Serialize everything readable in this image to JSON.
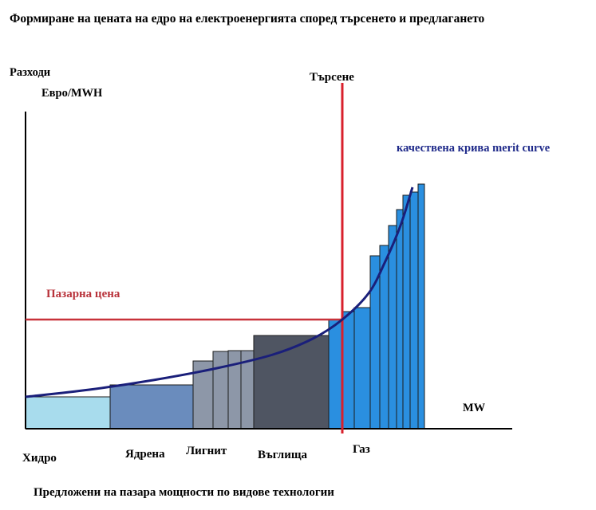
{
  "chart_data": {
    "type": "bar",
    "title": "Формиране на цената на едро на електроенергията според търсенето и предлагането",
    "ylabel": "Разходи",
    "yunit": "Евро/MWH",
    "xlabel": "MW",
    "footer": "Предложени на пазара мощности по видове технологии",
    "demand_label": "Търсене",
    "price_label": "Пазарна цена",
    "curve_label": "качествена крива merit curve",
    "groups": [
      {
        "name": "Хидро",
        "color": "#a8dced",
        "blocks": [
          {
            "from": 0,
            "to": 106,
            "cost": 40
          }
        ]
      },
      {
        "name": "Ядрена",
        "color": "#6a8cbd",
        "blocks": [
          {
            "from": 106,
            "to": 210,
            "cost": 55
          }
        ]
      },
      {
        "name": "Лигнит",
        "color": "#8d97a8",
        "blocks": [
          {
            "from": 210,
            "to": 235,
            "cost": 85
          },
          {
            "from": 235,
            "to": 254,
            "cost": 97
          },
          {
            "from": 254,
            "to": 270,
            "cost": 98
          },
          {
            "from": 270,
            "to": 286,
            "cost": 98
          }
        ]
      },
      {
        "name": "Въглища",
        "color": "#4f5562",
        "blocks": [
          {
            "from": 286,
            "to": 380,
            "cost": 117
          }
        ]
      },
      {
        "name": "Газ",
        "color": "#2a8fe0",
        "blocks": [
          {
            "from": 380,
            "to": 397,
            "cost": 137
          },
          {
            "from": 397,
            "to": 412,
            "cost": 147
          },
          {
            "from": 412,
            "to": 432,
            "cost": 152
          },
          {
            "from": 432,
            "to": 444,
            "cost": 217
          },
          {
            "from": 444,
            "to": 455,
            "cost": 230
          },
          {
            "from": 455,
            "to": 465,
            "cost": 255
          },
          {
            "from": 465,
            "to": 473,
            "cost": 275
          },
          {
            "from": 473,
            "to": 482,
            "cost": 293
          },
          {
            "from": 482,
            "to": 492,
            "cost": 297
          },
          {
            "from": 492,
            "to": 500,
            "cost": 307
          }
        ]
      }
    ],
    "demand": 397,
    "market_price": 137,
    "merit_curve": [
      {
        "x": 0,
        "y": 40
      },
      {
        "x": 80,
        "y": 49
      },
      {
        "x": 160,
        "y": 61
      },
      {
        "x": 240,
        "y": 76
      },
      {
        "x": 310,
        "y": 93
      },
      {
        "x": 360,
        "y": 113
      },
      {
        "x": 397,
        "y": 137
      },
      {
        "x": 430,
        "y": 170
      },
      {
        "x": 450,
        "y": 208
      },
      {
        "x": 470,
        "y": 255
      },
      {
        "x": 485,
        "y": 303
      }
    ],
    "xlim": [
      0,
      610
    ],
    "ylim": [
      0,
      390
    ],
    "colors": {
      "axis": "#000000",
      "demand": "#d8202c",
      "price": "#c8323a",
      "curve": "#1a1f7a",
      "curve_label": "#1f2a8a",
      "price_label": "#b8323a"
    }
  }
}
